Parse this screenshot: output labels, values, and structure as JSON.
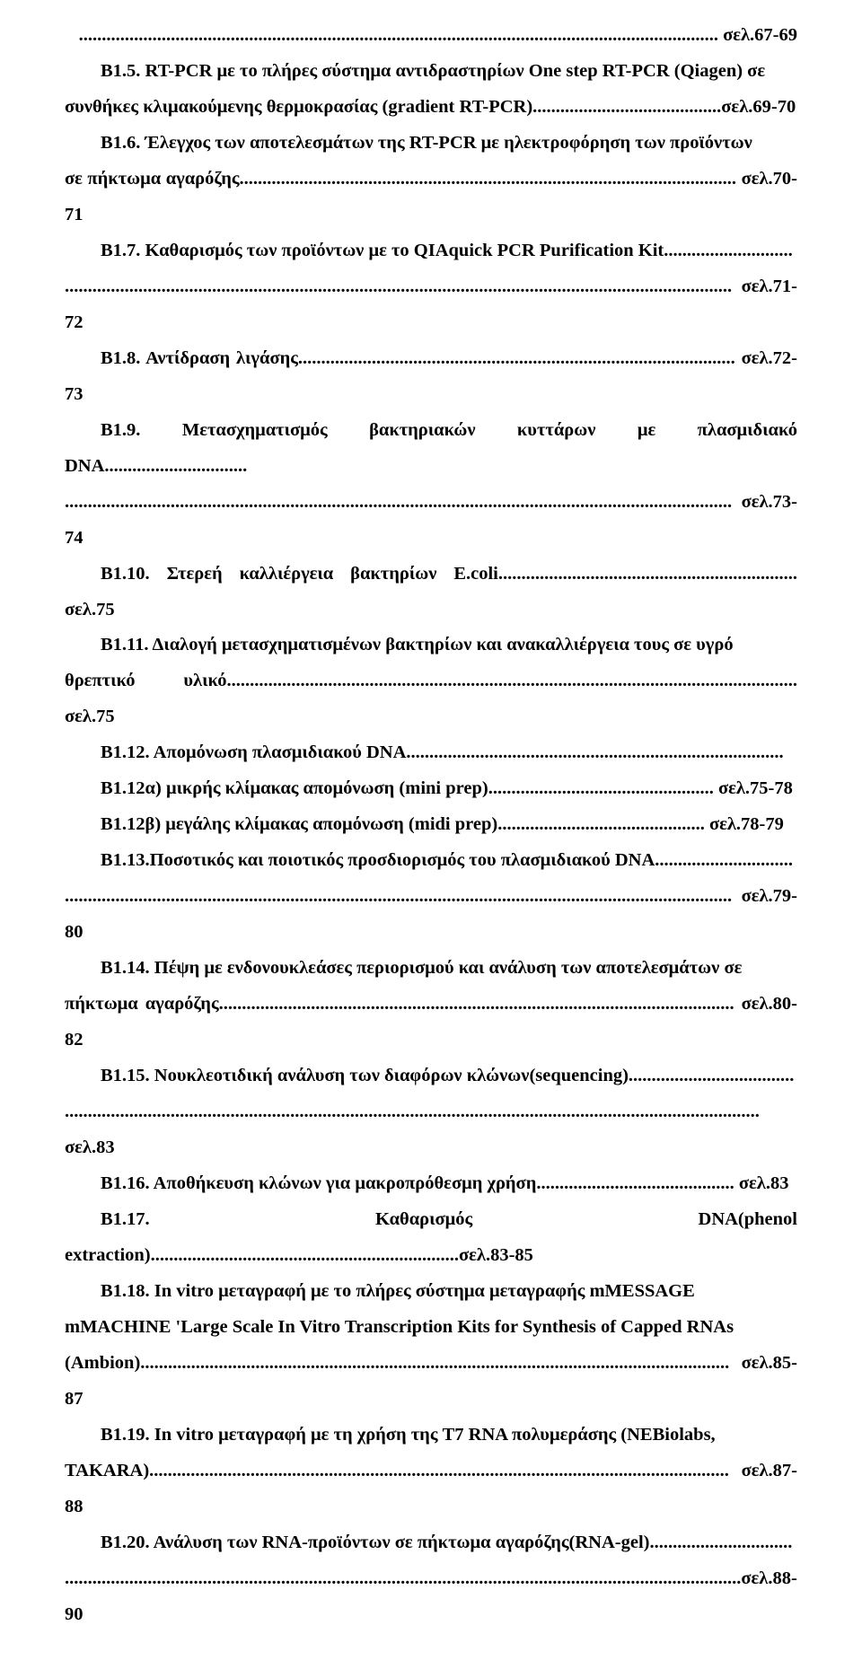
{
  "lines": [
    {
      "cls": "first-line",
      "text": "........................................................................................................................................... σελ.67-69"
    },
    {
      "cls": "indent entry",
      "text": "Β1.5. RT-PCR με το πλήρες σύστημα αντιδραστηρίων One step RT-PCR (Qiagen) σε"
    },
    {
      "cls": "entry",
      "text": "συνθήκες κλιμακούμενης θερμοκρασίας (gradient RT-PCR).........................................σελ.69-70"
    },
    {
      "cls": "indent entry",
      "text": "Β1.6. Έλεγχος των αποτελεσμάτων της RT-PCR με ηλεκτροφόρηση των προϊόντων"
    },
    {
      "cls": "entry",
      "text": "σε πήκτωμα αγαρόζης............................................................................................................ σελ.70-71"
    },
    {
      "cls": "indent entry",
      "text": "Β1.7. Καθαρισμός των προϊόντων με το QIAquick PCR Purification Kit............................"
    },
    {
      "cls": "entry",
      "text": "................................................................................................................................................. σελ.71-72"
    },
    {
      "cls": "indent entry",
      "text": "Β1.8. Αντίδραση λιγάσης............................................................................................... σελ.72-73"
    },
    {
      "cls": "indent entry",
      "text": "Β1.9. Μετασχηματισμός βακτηριακών κυττάρων με πλασμιδιακό DNA..............................."
    },
    {
      "cls": "entry",
      "text": "................................................................................................................................................. σελ.73-74"
    },
    {
      "cls": "indent entry",
      "text": "Β1.10. Στερεή καλλιέργεια βακτηρίων E.coli................................................................. σελ.75"
    },
    {
      "cls": "indent entry",
      "text": "Β1.11. Διαλογή μετασχηματισμένων βακτηρίων και ανακαλλιέργεια τους σε υγρό"
    },
    {
      "cls": "entry",
      "text": "θρεπτικό υλικό............................................................................................................................ σελ.75"
    },
    {
      "cls": "indent entry",
      "text": "Β1.12. Απομόνωση πλασμιδιακού DNA.................................................................................."
    },
    {
      "cls": "subindent entry",
      "text": "Β1.12α) μικρής κλίμακας απομόνωση (mini prep)................................................. σελ.75-78"
    },
    {
      "cls": "subindent entry",
      "text": "Β1.12β) μεγάλης κλίμακας απομόνωση (midi prep)............................................. σελ.78-79"
    },
    {
      "cls": "indent entry",
      "text": "Β1.13.Ποσοτικός και ποιοτικός προσδιορισμός του πλασμιδιακού DNA.............................."
    },
    {
      "cls": "entry",
      "text": "................................................................................................................................................. σελ.79-80"
    },
    {
      "cls": "indent entry",
      "text": "Β1.14. Πέψη με ενδονουκλεάσες περιορισμού και ανάλυση των αποτελεσμάτων σε"
    },
    {
      "cls": "entry",
      "text": "πήκτωμα αγαρόζης................................................................................................................ σελ.80-82"
    },
    {
      "cls": "indent entry",
      "text": "Β1.15. Νουκλεοτιδική ανάλυση των διαφόρων κλώνων(sequencing)...................................."
    },
    {
      "cls": "entry",
      "text": "....................................................................................................................................................... σελ.83"
    },
    {
      "cls": "indent entry",
      "text": "Β1.16. Αποθήκευση κλώνων για μακροπρόθεσμη χρήση........................................... σελ.83"
    },
    {
      "cls": "indent entry",
      "text": "Β1.17. Καθαρισμός DNA(phenol extraction)...................................................................σελ.83-85"
    },
    {
      "cls": "indent entry",
      "text": "Β1.18. In vitro μεταγραφή με το πλήρες σύστημα μεταγραφής mMESSAGE"
    },
    {
      "cls": "entry",
      "text": "mMACHINE 'Large Scale In Vitro Transcription Kits for Synthesis of Capped RNAs"
    },
    {
      "cls": "entry",
      "text": "(Ambion)................................................................................................................................ σελ.85-87"
    },
    {
      "cls": "indent entry",
      "text": "Β1.19. In vitro μεταγραφή με τη χρήση της T7 RNA πολυμεράσης (NEBiolabs,"
    },
    {
      "cls": "entry",
      "text": "TAKARA).............................................................................................................................. σελ.87-88"
    },
    {
      "cls": "indent entry",
      "text": "Β1.20. Ανάλυση των RNA-προϊόντων σε πήκτωμα αγαρόζης(RNA-gel)..............................."
    },
    {
      "cls": "entry",
      "text": "...................................................................................................................................................σελ.88-90"
    }
  ]
}
